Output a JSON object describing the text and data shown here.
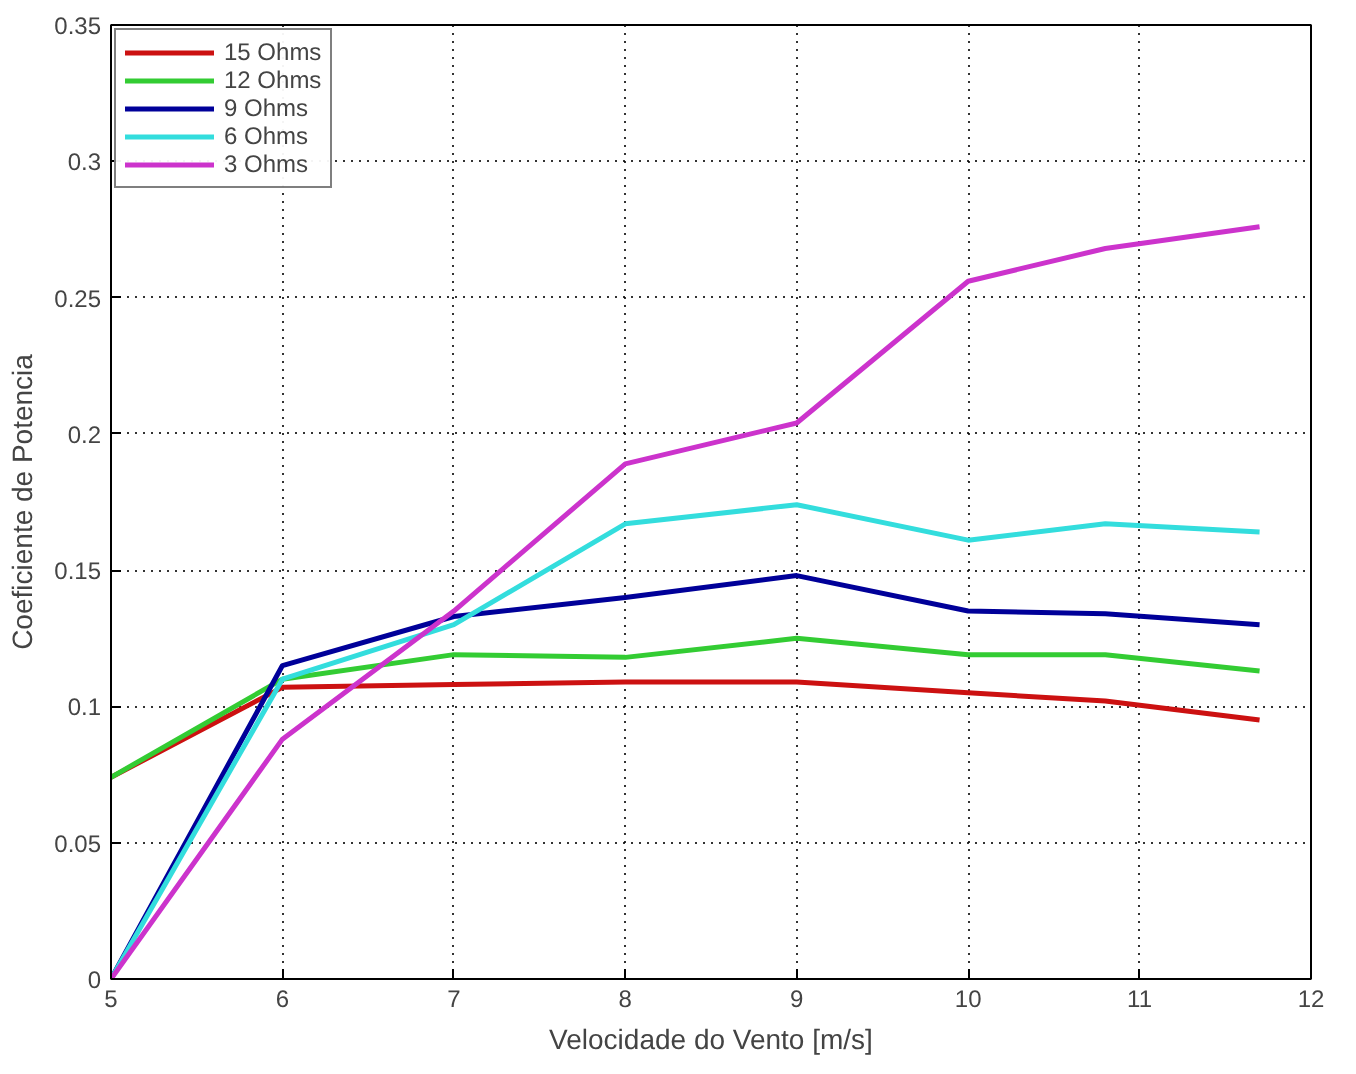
{
  "chart_data": {
    "type": "line",
    "xlabel": "Velocidade do Vento [m/s]",
    "ylabel": "Coeficiente de Potencia",
    "x": [
      5,
      6,
      7,
      8,
      9,
      10,
      10.8,
      11.7
    ],
    "xlim": [
      5,
      12
    ],
    "xticks": [
      5,
      6,
      7,
      8,
      9,
      10,
      11,
      12
    ],
    "ylim": [
      0,
      0.35
    ],
    "yticks": [
      0,
      0.05,
      0.1,
      0.15,
      0.2,
      0.25,
      0.3,
      0.35
    ],
    "grid": true,
    "legend": "top left",
    "line_style": "solid",
    "marker": "none",
    "series": [
      {
        "name": "15 Ohms",
        "color": "#cc1111",
        "values": [
          0.074,
          0.107,
          0.108,
          0.109,
          0.109,
          0.105,
          0.102,
          0.095
        ]
      },
      {
        "name": "12 Ohms",
        "color": "#33cc33",
        "values": [
          0.074,
          0.11,
          0.119,
          0.118,
          0.125,
          0.119,
          0.119,
          0.113
        ]
      },
      {
        "name": "9 Ohms",
        "color": "#000099",
        "values": [
          0,
          0.115,
          0.133,
          0.14,
          0.148,
          0.135,
          0.134,
          0.13
        ]
      },
      {
        "name": "6 Ohms",
        "color": "#33dddd",
        "values": [
          0,
          0.11,
          0.13,
          0.167,
          0.174,
          0.161,
          0.167,
          0.164
        ]
      },
      {
        "name": "3 Ohms",
        "color": "#cc33cc",
        "values": [
          0,
          0.088,
          0.135,
          0.189,
          0.204,
          0.256,
          0.268,
          0.276
        ]
      }
    ]
  }
}
